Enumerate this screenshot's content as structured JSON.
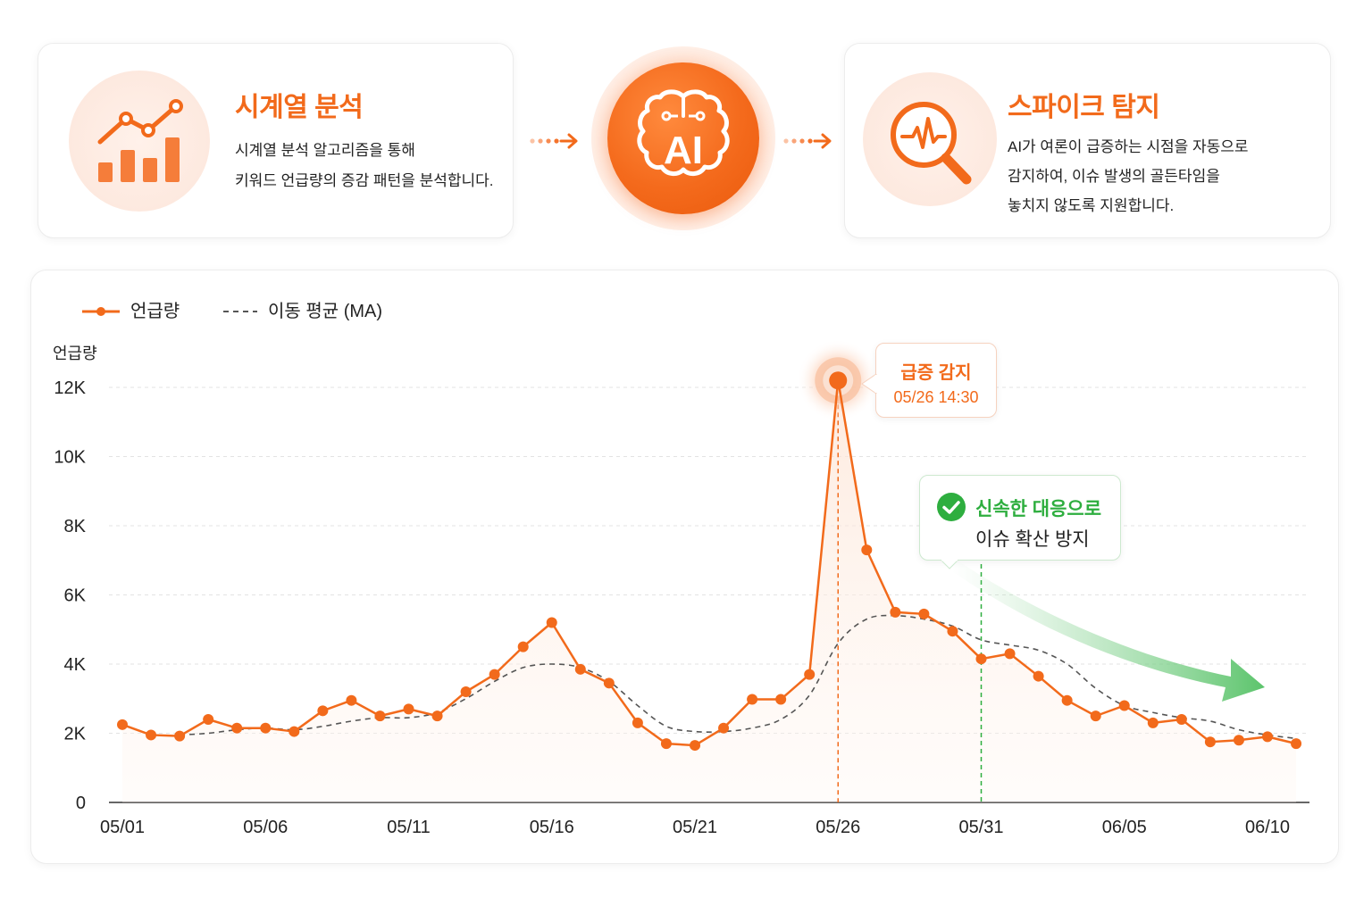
{
  "cards": {
    "left": {
      "title": "시계열 분석",
      "desc": [
        "시계열 분석 알고리즘을 통해",
        "키워드 언급량의 증감 패턴을 분석합니다."
      ],
      "icon": "bar-chart-trend-icon"
    },
    "center": {
      "label": "AI",
      "icon": "brain-icon"
    },
    "right": {
      "title": "스파이크 탐지",
      "desc": [
        "AI가 여론이 급증하는 시점을 자동으로",
        "감지하여, 이슈 발생의 골든타임을",
        "놓치지 않도록 지원합니다."
      ],
      "icon": "magnifier-pulse-icon"
    }
  },
  "colors": {
    "accent": "#f26a1b",
    "ma": "#555555",
    "success": "#2eae3f",
    "grid": "#e3e3e3"
  },
  "annotations": {
    "spike": {
      "title": "급증 감지",
      "time": "05/26 14:30"
    },
    "response": {
      "title": "신속한 대응으로",
      "subtitle": "이슈 확산 방지"
    }
  },
  "chart_data": {
    "type": "line",
    "ylabel": "언급량",
    "ylim": [
      0,
      12000
    ],
    "yticks": [
      0,
      2000,
      4000,
      6000,
      8000,
      10000,
      12000
    ],
    "ytick_labels": [
      "0",
      "2K",
      "4K",
      "6K",
      "8K",
      "10K",
      "12K"
    ],
    "x": [
      "05/01",
      "05/02",
      "05/03",
      "05/04",
      "05/05",
      "05/06",
      "05/07",
      "05/08",
      "05/09",
      "05/10",
      "05/11",
      "05/12",
      "05/13",
      "05/14",
      "05/15",
      "05/16",
      "05/17",
      "05/18",
      "05/19",
      "05/20",
      "05/21",
      "05/22",
      "05/23",
      "05/24",
      "05/25",
      "05/26",
      "05/27",
      "05/28",
      "05/29",
      "05/30",
      "05/31",
      "06/01",
      "06/02",
      "06/03",
      "06/04",
      "06/05",
      "06/06",
      "06/07",
      "06/08",
      "06/09",
      "06/10",
      "06/11"
    ],
    "xtick_labels": [
      "05/01",
      "05/06",
      "05/11",
      "05/16",
      "05/21",
      "05/26",
      "05/31",
      "06/05",
      "06/10"
    ],
    "legend_position": "top-left",
    "grid": true,
    "series": [
      {
        "name": "언급량",
        "style": "solid-markers",
        "values": [
          2250,
          1950,
          1920,
          2400,
          2150,
          2150,
          2050,
          2650,
          2950,
          2500,
          2700,
          2500,
          3200,
          3700,
          4500,
          5200,
          3850,
          3450,
          2300,
          1700,
          1650,
          2150,
          2980,
          2980,
          3700,
          12200,
          7300,
          5500,
          5450,
          4950,
          4150,
          4300,
          3650,
          2950,
          2500,
          2800,
          2300,
          2400,
          1750,
          1800,
          1900,
          1700
        ]
      },
      {
        "name": "이동 평균 (MA)",
        "style": "dashed",
        "values": [
          null,
          null,
          1950,
          2000,
          2100,
          2150,
          2100,
          2200,
          2350,
          2450,
          2450,
          2600,
          3000,
          3500,
          3900,
          4000,
          3900,
          3500,
          2800,
          2200,
          2050,
          2050,
          2150,
          2400,
          3100,
          4600,
          5300,
          5400,
          5300,
          5100,
          4700,
          4550,
          4400,
          4000,
          3300,
          2800,
          2600,
          2450,
          2350,
          2100,
          1950,
          1850
        ]
      }
    ],
    "highlights": [
      {
        "x": "05/26",
        "label": "급증 감지"
      },
      {
        "x": "05/31",
        "label": "신속한 대응으로 이슈 확산 방지"
      }
    ]
  },
  "legend": {
    "mentions": "언급량",
    "ma": "이동 평균 (MA)"
  }
}
